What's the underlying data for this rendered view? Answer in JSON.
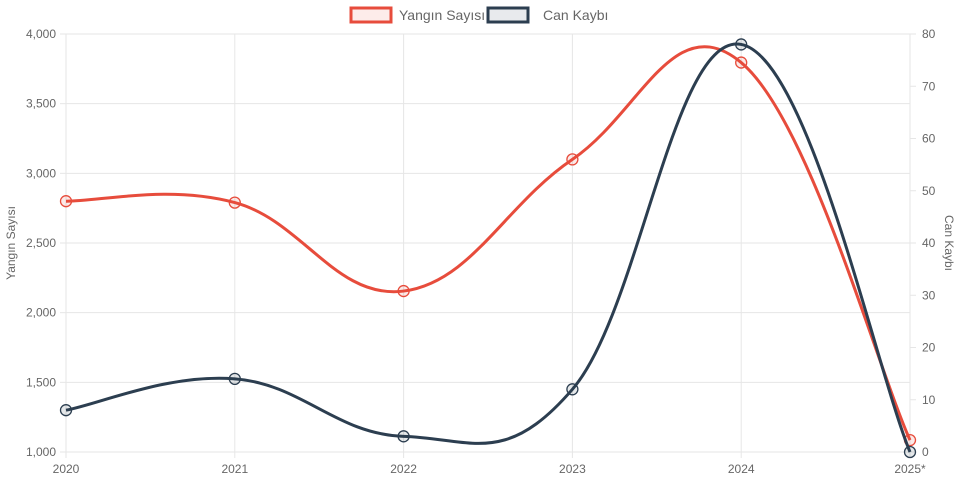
{
  "chart_data": {
    "type": "line",
    "categories": [
      "2020",
      "2021",
      "2022",
      "2023",
      "2024",
      "2025*"
    ],
    "series": [
      {
        "name": "Yangın Sayısı",
        "axis": "left",
        "color": "#e74c3c",
        "values": [
          2800,
          2790,
          2155,
          3100,
          3795,
          1085
        ]
      },
      {
        "name": "Can Kaybı",
        "axis": "right",
        "color": "#2c3e50",
        "values": [
          8,
          14,
          3,
          12,
          78,
          0
        ]
      }
    ],
    "y_left": {
      "label": "Yangın Sayısı",
      "min": 1000,
      "max": 4000,
      "ticks": [
        "1,000",
        "1,500",
        "2,000",
        "2,500",
        "3,000",
        "3,500",
        "4,000"
      ]
    },
    "y_right": {
      "label": "Can Kaybı",
      "min": 0,
      "max": 80,
      "ticks": [
        "0",
        "10",
        "20",
        "30",
        "40",
        "50",
        "60",
        "70",
        "80"
      ]
    },
    "grid": true,
    "legend_position": "top"
  }
}
